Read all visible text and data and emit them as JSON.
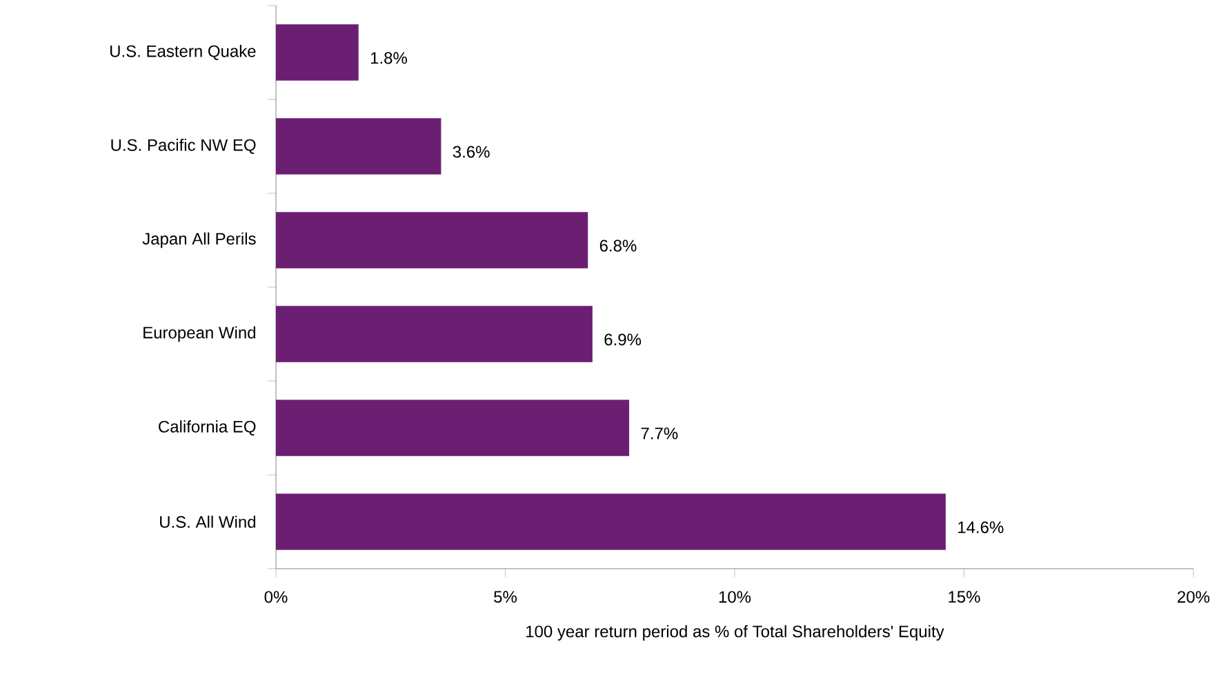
{
  "chart_data": {
    "type": "bar",
    "orientation": "horizontal",
    "categories": [
      "U.S. Eastern Quake",
      "U.S. Pacific NW EQ",
      "Japan All Perils",
      "European Wind",
      "California EQ",
      "U.S. All Wind"
    ],
    "values": [
      1.8,
      3.6,
      6.8,
      6.9,
      7.7,
      14.6
    ],
    "value_labels": [
      "1.8%",
      "3.6%",
      "6.8%",
      "6.9%",
      "7.7%",
      "14.6%"
    ],
    "color": "#6b1f72",
    "xlabel": "100 year return period as % of Total Shareholders' Equity",
    "xlim": [
      0,
      20
    ],
    "xticks": [
      {
        "value": 0,
        "label": "0%"
      },
      {
        "value": 5,
        "label": "5%"
      },
      {
        "value": 10,
        "label": "10%"
      },
      {
        "value": 15,
        "label": "15%"
      },
      {
        "value": 20,
        "label": "20%"
      }
    ],
    "grid": false
  }
}
